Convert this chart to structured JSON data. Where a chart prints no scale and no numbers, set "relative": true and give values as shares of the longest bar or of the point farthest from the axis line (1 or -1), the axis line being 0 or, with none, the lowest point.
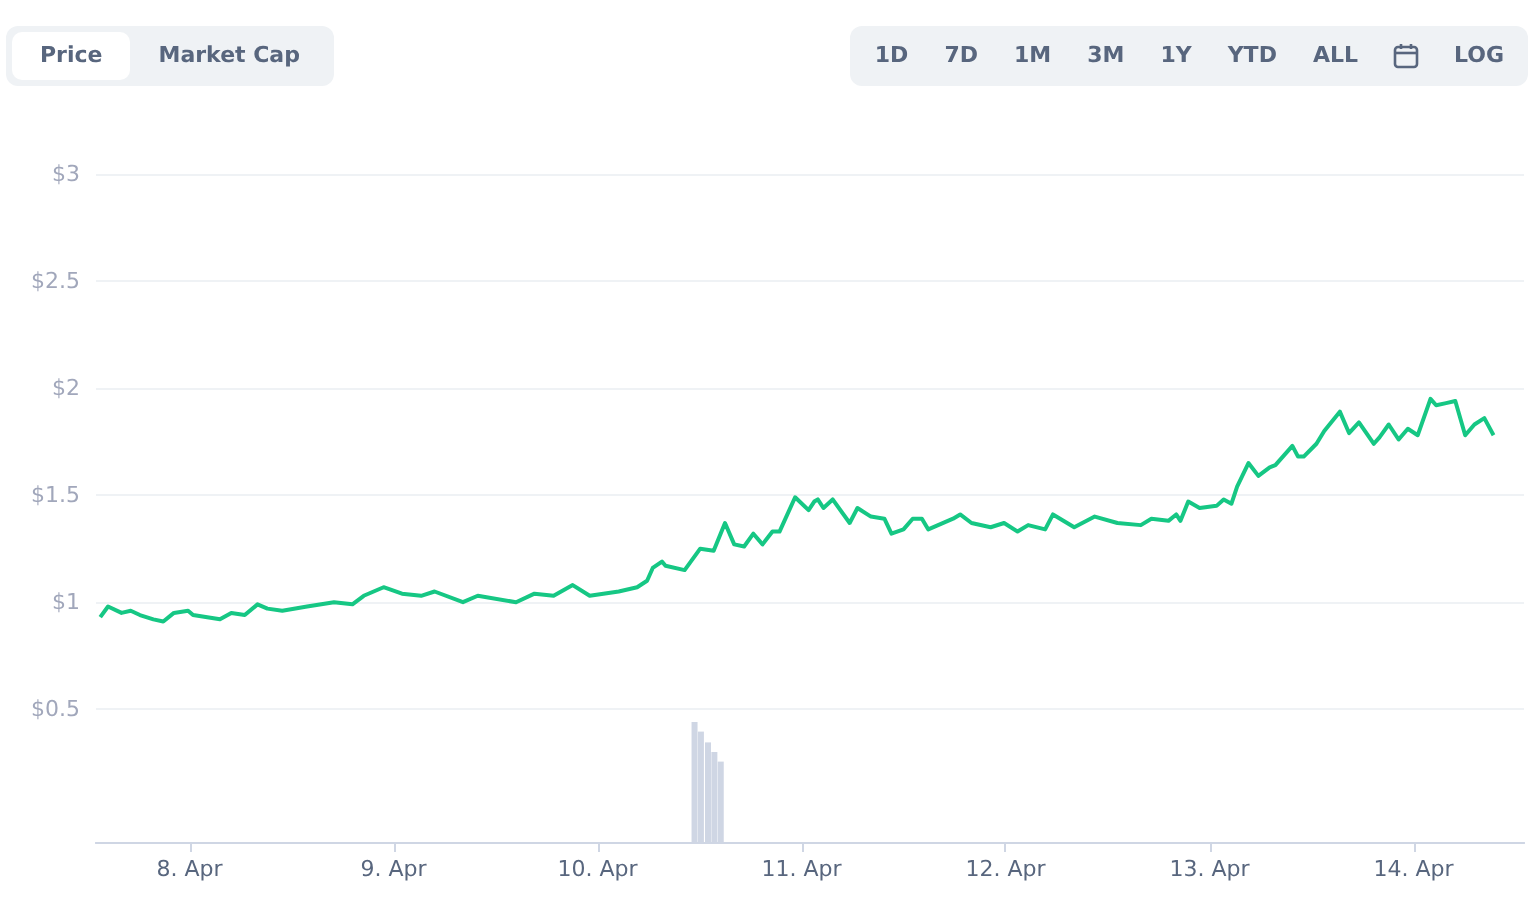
{
  "chart_data": [
    {
      "type": "other",
      "annotations": [
        "Price",
        "Market Cap",
        "1D",
        "7D",
        "1M",
        "3M",
        "1Y",
        "YTD",
        "ALL",
        "LOG"
      ]
    },
    {
      "type": "line",
      "x": [
        "--04-07T13:30",
        "--04-07T14:25",
        "--04-07T16:00",
        "--04-07T17:05",
        "--04-07T18:10",
        "--04-07T19:45",
        "--04-07T20:55",
        "--04-07T22:10",
        "--04-07T23:50",
        "--04-08T00:25",
        "--04-08T03:35",
        "--04-08T04:55",
        "--04-08T06:30",
        "--04-08T08:00",
        "--04-08T09:10",
        "--04-08T10:55",
        "--04-08T13:50",
        "--04-08T17:00",
        "--04-08T19:10",
        "--04-08T20:30",
        "--04-08T22:50",
        "--04-09T01:00",
        "--04-09T03:15",
        "--04-09T04:50",
        "--04-09T08:10",
        "--04-09T09:55",
        "--04-09T14:25",
        "--04-09T16:35",
        "--04-09T18:50",
        "--04-09T21:05",
        "--04-09T23:05",
        "--04-10T02:30",
        "--04-10T04:40",
        "--04-10T05:50",
        "--04-10T06:30",
        "--04-10T07:35",
        "--04-10T08:00",
        "--04-10T10:15",
        "--04-10T12:05",
        "--04-10T13:40",
        "--04-10T15:00",
        "--04-10T16:05",
        "--04-10T17:15",
        "--04-10T18:20",
        "--04-10T19:25",
        "--04-10T20:35",
        "--04-10T21:25",
        "--04-10T23:15",
        "--04-11T00:50",
        "--04-11T01:30",
        "--04-11T01:55",
        "--04-11T02:35",
        "--04-11T03:40",
        "--04-11T05:40",
        "--04-11T06:35",
        "--04-11T08:10",
        "--04-11T09:45",
        "--04-11T10:35",
        "--04-11T12:00",
        "--04-11T13:05",
        "--04-11T14:10",
        "--04-11T14:55",
        "--04-11T17:50",
        "--04-11T18:40",
        "--04-11T20:00",
        "--04-11T22:15",
        "--04-11T23:50",
        "--04-12T01:25",
        "--04-12T02:40",
        "--04-12T04:40",
        "--04-12T05:35",
        "--04-12T08:05",
        "--04-12T10:30",
        "--04-12T13:10",
        "--04-12T15:55",
        "--04-12T17:10",
        "--04-12T19:10",
        "--04-12T20:05",
        "--04-12T20:35",
        "--04-12T21:30",
        "--04-12T22:50",
        "--04-13T00:50",
        "--04-13T01:40",
        "--04-13T02:35",
        "--04-13T03:15",
        "--04-13T04:35",
        "--04-13T05:45",
        "--04-13T07:05",
        "--04-13T07:45",
        "--04-13T09:45",
        "--04-13T10:25",
        "--04-13T11:05",
        "--04-13T12:35",
        "--04-13T13:30",
        "--04-13T15:20",
        "--04-13T16:25",
        "--04-13T17:35",
        "--04-13T19:20",
        "--04-13T20:00",
        "--04-13T21:05",
        "--04-13T22:15",
        "--04-13T23:20",
        "--04-14T00:30",
        "--04-14T02:00",
        "--04-14T02:40",
        "--04-14T03:50",
        "--04-14T04:55",
        "--04-14T06:05",
        "--04-14T07:10",
        "--04-14T08:20",
        "--04-14T09:25"
      ],
      "values": [
        0.93,
        0.98,
        0.95,
        0.96,
        0.94,
        0.92,
        0.91,
        0.95,
        0.96,
        0.94,
        0.92,
        0.95,
        0.94,
        0.99,
        0.97,
        0.96,
        0.98,
        1.0,
        0.99,
        1.03,
        1.07,
        1.04,
        1.03,
        1.05,
        1.0,
        1.03,
        1.0,
        1.04,
        1.03,
        1.08,
        1.03,
        1.05,
        1.07,
        1.1,
        1.16,
        1.19,
        1.17,
        1.15,
        1.25,
        1.24,
        1.37,
        1.27,
        1.26,
        1.32,
        1.27,
        1.33,
        1.33,
        1.49,
        1.43,
        1.47,
        1.48,
        1.44,
        1.48,
        1.37,
        1.44,
        1.4,
        1.39,
        1.32,
        1.34,
        1.39,
        1.39,
        1.34,
        1.39,
        1.41,
        1.37,
        1.35,
        1.37,
        1.33,
        1.36,
        1.34,
        1.41,
        1.35,
        1.4,
        1.37,
        1.36,
        1.39,
        1.38,
        1.41,
        1.38,
        1.47,
        1.44,
        1.45,
        1.48,
        1.46,
        1.54,
        1.65,
        1.59,
        1.63,
        1.64,
        1.73,
        1.68,
        1.68,
        1.74,
        1.8,
        1.89,
        1.79,
        1.84,
        1.74,
        1.77,
        1.83,
        1.76,
        1.81,
        1.78,
        1.95,
        1.92,
        1.93,
        1.94,
        1.78,
        1.83,
        1.86,
        1.78
      ],
      "color": "#16c784",
      "marker": "none",
      "grid": "y",
      "xlim": [
        "--04-07T13:00",
        "--04-14T13:00"
      ],
      "xticks": [
        {
          "value": "--04-08",
          "label": "8. Apr"
        },
        {
          "value": "--04-09",
          "label": "9. Apr"
        },
        {
          "value": "--04-10",
          "label": "10. Apr"
        },
        {
          "value": "--04-11",
          "label": "11. Apr"
        },
        {
          "value": "--04-12",
          "label": "12. Apr"
        },
        {
          "value": "--04-13",
          "label": "13. Apr"
        },
        {
          "value": "--04-14",
          "label": "14. Apr"
        }
      ],
      "ylim": [
        -0.12,
        3
      ],
      "yticks": [
        {
          "value": 0.5,
          "label": "$0.5"
        },
        {
          "value": 1,
          "label": "$1"
        },
        {
          "value": 1.5,
          "label": "$1.5"
        },
        {
          "value": 2,
          "label": "$2"
        },
        {
          "value": 2.5,
          "label": "$2.5"
        },
        {
          "value": 3,
          "label": "$3"
        }
      ]
    },
    {
      "type": "bar",
      "relative": true,
      "color": "#cfd6e4",
      "x": [
        "--04-10T11:25",
        "--04-10T12:10",
        "--04-10T13:00",
        "--04-10T13:45",
        "--04-10T14:30"
      ],
      "values": [
        1,
        0.92,
        0.83,
        0.75,
        0.67
      ],
      "xlim": [
        "--04-07T13:00",
        "--04-14T13:00"
      ]
    }
  ]
}
